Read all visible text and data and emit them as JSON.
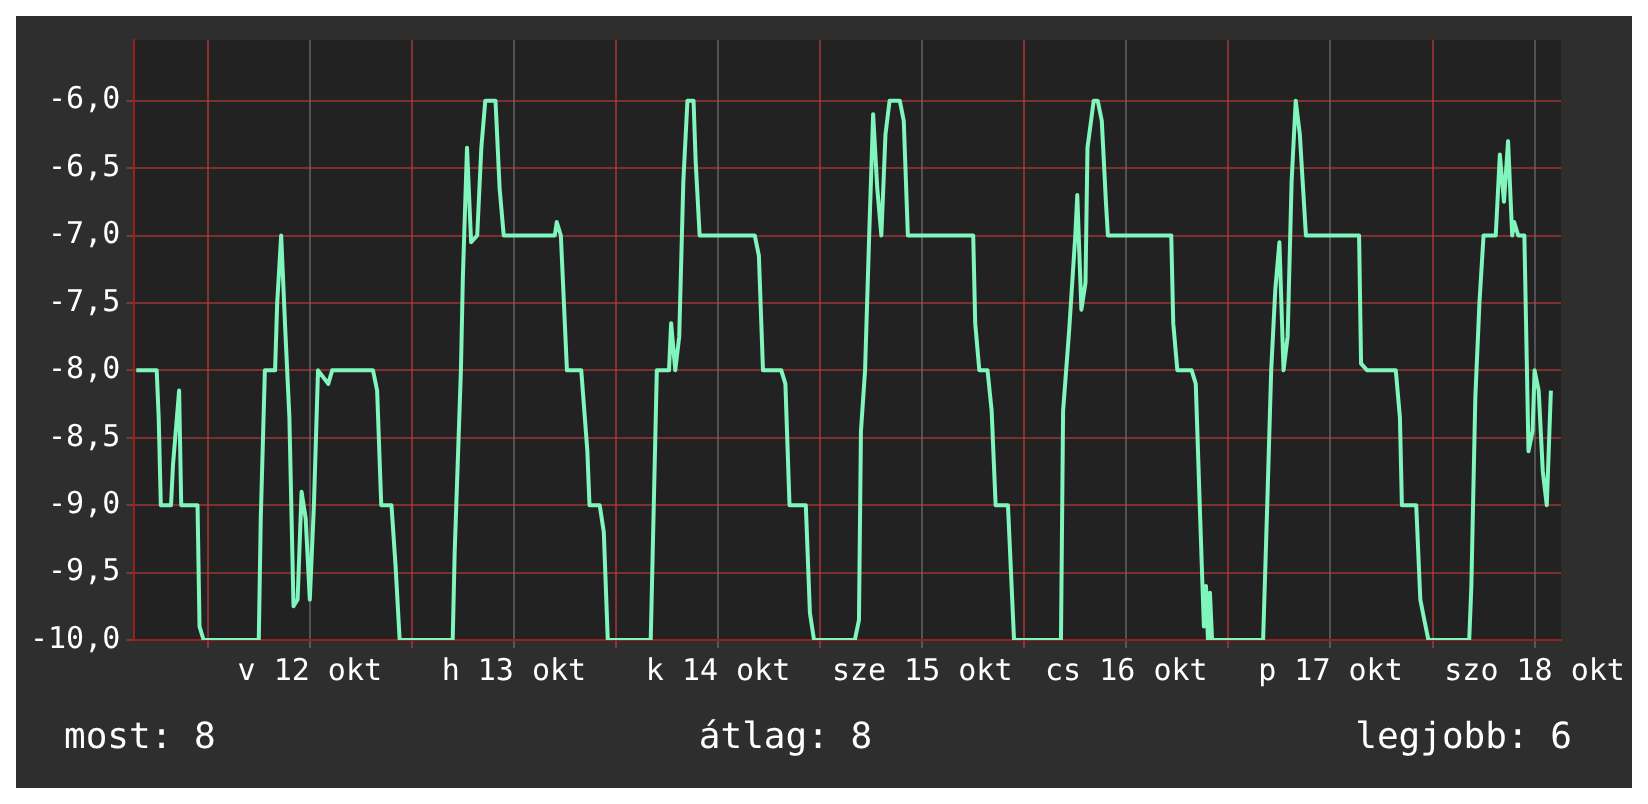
{
  "chart_data": {
    "type": "line",
    "x": [
      "--10-11T15:36",
      "--10-11T18:00",
      "--10-11T18:14",
      "--10-11T18:29",
      "--10-11T19:41",
      "--10-11T19:55",
      "--10-11T20:38",
      "--10-11T20:53",
      "--10-11T22:48",
      "--10-11T23:02",
      "--10-11T23:31",
      "--10-12T06:00",
      "--10-12T06:14",
      "--10-12T06:43",
      "--10-12T07:55",
      "--10-12T08:10",
      "--10-12T08:38",
      "--10-12T09:07",
      "--10-12T09:36",
      "--10-12T10:05",
      "--10-12T10:34",
      "--10-12T11:02",
      "--10-12T11:31",
      "--10-12T12:00",
      "--10-12T12:29",
      "--10-12T12:58",
      "--10-12T14:10",
      "--10-12T14:38",
      "--10-12T19:26",
      "--10-12T19:55",
      "--10-12T20:24",
      "--10-12T21:36",
      "--10-12T22:05",
      "--10-12T22:34",
      "--10-13T04:48",
      "--10-13T05:02",
      "--10-13T05:46",
      "--10-13T06:00",
      "--10-13T06:29",
      "--10-13T06:58",
      "--10-13T07:41",
      "--10-13T08:10",
      "--10-13T08:38",
      "--10-13T09:50",
      "--10-13T10:19",
      "--10-13T10:48",
      "--10-13T16:48",
      "--10-13T17:02",
      "--10-13T17:31",
      "--10-13T18:14",
      "--10-13T19:55",
      "--10-13T20:38",
      "--10-13T20:53",
      "--10-13T22:05",
      "--10-13T22:34",
      "--10-13T23:02",
      "--10-14T04:05",
      "--10-14T04:19",
      "--10-14T04:48",
      "--10-14T06:14",
      "--10-14T06:29",
      "--10-14T06:58",
      "--10-14T07:26",
      "--10-14T07:55",
      "--10-14T08:24",
      "--10-14T09:07",
      "--10-14T09:22",
      "--10-14T09:50",
      "--10-14T16:19",
      "--10-14T16:48",
      "--10-14T17:17",
      "--10-14T19:26",
      "--10-14T19:55",
      "--10-14T20:24",
      "--10-14T22:19",
      "--10-14T22:48",
      "--10-14T23:17",
      "--10-15T04:05",
      "--10-15T04:34",
      "--10-15T04:48",
      "--10-15T05:17",
      "--10-15T05:46",
      "--10-15T06:14",
      "--10-15T06:43",
      "--10-15T07:12",
      "--10-15T07:41",
      "--10-15T08:10",
      "--10-15T09:22",
      "--10-15T09:50",
      "--10-15T10:19",
      "--10-15T18:00",
      "--10-15T18:14",
      "--10-15T18:43",
      "--10-15T19:41",
      "--10-15T20:10",
      "--10-15T20:38",
      "--10-15T22:05",
      "--10-15T22:48",
      "--10-16T04:19",
      "--10-16T04:34",
      "--10-16T05:17",
      "--10-16T06:00",
      "--10-16T06:14",
      "--10-16T06:43",
      "--10-16T07:12",
      "--10-16T07:26",
      "--10-16T08:10",
      "--10-16T08:38",
      "--10-16T09:07",
      "--10-16T09:36",
      "--10-16T09:50",
      "--10-16T17:17",
      "--10-16T17:31",
      "--10-16T18:00",
      "--10-16T19:41",
      "--10-16T20:10",
      "--10-16T20:38",
      "--10-16T21:07",
      "--10-16T21:22",
      "--10-16T21:36",
      "--10-16T21:50",
      "--10-16T22:05",
      "--10-17T04:05",
      "--10-17T04:34",
      "--10-17T05:02",
      "--10-17T05:31",
      "--10-17T06:00",
      "--10-17T06:29",
      "--10-17T06:58",
      "--10-17T07:26",
      "--10-17T07:55",
      "--10-17T08:24",
      "--10-17T09:07",
      "--10-17T15:22",
      "--10-17T15:36",
      "--10-17T16:19",
      "--10-17T19:41",
      "--10-17T20:10",
      "--10-17T20:24",
      "--10-17T22:05",
      "--10-17T22:34",
      "--10-17T23:02",
      "--10-17T23:31",
      "--10-18T04:19",
      "--10-18T04:34",
      "--10-18T05:02",
      "--10-18T05:31",
      "--10-18T06:00",
      "--10-18T07:26",
      "--10-18T07:55",
      "--10-18T08:24",
      "--10-18T08:53",
      "--10-18T09:22",
      "--10-18T09:36",
      "--10-18T10:05",
      "--10-18T10:48",
      "--10-18T11:17",
      "--10-18T11:46",
      "--10-18T12:00",
      "--10-18T12:29",
      "--10-18T12:58",
      "--10-18T13:26",
      "--10-18T13:55"
    ],
    "series": [
      {
        "color": "#80f5bc",
        "values": [
          -8,
          -8,
          -8.35,
          -9,
          -9,
          -8.7,
          -8.15,
          -9,
          -9,
          -9.9,
          -10,
          -10,
          -9.1,
          -8,
          -8,
          -7.5,
          -7,
          -7.7,
          -8.35,
          -9.75,
          -9.7,
          -8.9,
          -9.1,
          -9.7,
          -9,
          -8,
          -8.1,
          -8,
          -8,
          -8.15,
          -9,
          -9,
          -9.45,
          -10,
          -10,
          -9.35,
          -8,
          -7.3,
          -6.35,
          -7.05,
          -7,
          -6.35,
          -6,
          -6,
          -6.65,
          -7,
          -7,
          -6.9,
          -7,
          -8,
          -8,
          -8.6,
          -9,
          -9,
          -9.2,
          -10,
          -10,
          -9.35,
          -8,
          -8,
          -7.65,
          -8,
          -7.75,
          -6.6,
          -6,
          -6,
          -6.45,
          -7,
          -7,
          -7.15,
          -8,
          -8,
          -8.1,
          -9,
          -9,
          -9.8,
          -10,
          -10,
          -9.85,
          -8.45,
          -8,
          -7,
          -6.1,
          -6.65,
          -7,
          -6.25,
          -6,
          -6,
          -6.15,
          -7,
          -7,
          -7.65,
          -8,
          -8,
          -8.3,
          -9,
          -9,
          -10,
          -10,
          -8.3,
          -7.7,
          -7,
          -6.7,
          -7.55,
          -7.35,
          -6.35,
          -6,
          -6,
          -6.15,
          -6.75,
          -7,
          -7,
          -7.65,
          -8,
          -8,
          -8.1,
          -9,
          -9.9,
          -9.6,
          -10,
          -9.65,
          -10,
          -10,
          -9,
          -8,
          -7.4,
          -7.05,
          -8,
          -7.75,
          -6.6,
          -6,
          -6.25,
          -7,
          -7,
          -7.95,
          -8,
          -8,
          -8.35,
          -9,
          -9,
          -9.7,
          -9.85,
          -10,
          -10,
          -9.6,
          -8.2,
          -7.5,
          -7,
          -7,
          -6.4,
          -6.75,
          -6.3,
          -7,
          -6.9,
          -7,
          -7,
          -8.6,
          -8.45,
          -8,
          -8.15,
          -8.75,
          -9,
          -8.15
        ]
      }
    ],
    "xlim": [
      "--10-11T15:22",
      "--10-18T15:07"
    ],
    "xticks": [
      {
        "value": "--10-12T00:00",
        "label": null
      },
      {
        "value": "--10-12T12:00",
        "label": "v 12 okt"
      },
      {
        "value": "--10-13T00:00",
        "label": null
      },
      {
        "value": "--10-13T12:00",
        "label": "h 13 okt"
      },
      {
        "value": "--10-14T00:00",
        "label": null
      },
      {
        "value": "--10-14T12:00",
        "label": "k 14 okt"
      },
      {
        "value": "--10-15T00:00",
        "label": null
      },
      {
        "value": "--10-15T12:00",
        "label": "sze 15 okt"
      },
      {
        "value": "--10-16T00:00",
        "label": null
      },
      {
        "value": "--10-16T12:00",
        "label": "cs 16 okt"
      },
      {
        "value": "--10-17T00:00",
        "label": null
      },
      {
        "value": "--10-17T12:00",
        "label": "p 17 okt"
      },
      {
        "value": "--10-18T00:00",
        "label": null
      },
      {
        "value": "--10-18T12:00",
        "label": "szo 18 okt"
      }
    ],
    "ylim": [
      -10,
      -5.55
    ],
    "yticks": [
      {
        "value": -6,
        "label": "-6,0"
      },
      {
        "value": -6.5,
        "label": "-6,5"
      },
      {
        "value": -7,
        "label": "-7,0"
      },
      {
        "value": -7.5,
        "label": "-7,5"
      },
      {
        "value": -8,
        "label": "-8,0"
      },
      {
        "value": -8.5,
        "label": "-8,5"
      },
      {
        "value": -9,
        "label": "-9,0"
      },
      {
        "value": -9.5,
        "label": "-9,5"
      },
      {
        "value": -10,
        "label": "-10,0"
      }
    ],
    "grid": true,
    "marker": "none",
    "line_style": "solid",
    "legend": false,
    "annotations": [
      "most: 8",
      "átlag: 8",
      "legjobb: 6"
    ]
  }
}
